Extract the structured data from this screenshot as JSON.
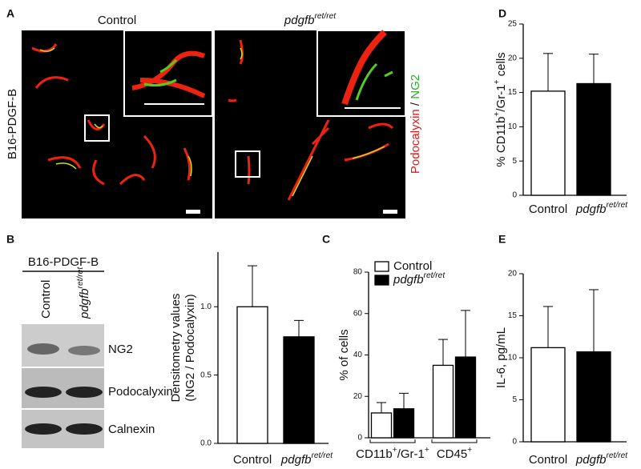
{
  "panel_letters": [
    "A",
    "B",
    "C",
    "D",
    "E"
  ],
  "panel_a": {
    "columns": [
      [
        "Control"
      ],
      [
        "pdgfb",
        "ret/ret"
      ]
    ],
    "row_label": "B16-PDGF-B",
    "stain": [
      "Podocalyxin",
      " / ",
      "NG2"
    ]
  },
  "panel_b_blot": {
    "header": "B16-PDGF-B",
    "lanes": [
      [
        "Control"
      ],
      [
        "pdgfb",
        "ret/ret"
      ]
    ],
    "bands": [
      "NG2",
      "Podocalyxin",
      "Calnexin"
    ]
  },
  "chart_data": [
    {
      "type": "bar",
      "ylabel": [
        "Densitometry values",
        "(NG2 / Podocalyxin)"
      ],
      "categories": [
        [
          "Control"
        ],
        [
          "pdgfb",
          "ret/ret"
        ]
      ],
      "values": [
        1.0,
        0.78
      ],
      "errors": [
        0.3,
        0.12
      ],
      "colors": [
        "#ffffff",
        "#000000"
      ],
      "ylim": [
        0,
        1.4
      ],
      "yticks": [
        {
          "value": 0,
          "label": "0.0"
        },
        {
          "value": 0.5,
          "label": "0.5"
        },
        {
          "value": 1,
          "label": "1.0"
        }
      ]
    },
    {
      "type": "grouped_bar",
      "ylabel": [
        "%  of cells"
      ],
      "categories": [
        [
          "CD11b",
          "+",
          "/Gr-1",
          "+"
        ],
        [
          "CD45",
          "+"
        ]
      ],
      "series": [
        {
          "name": "Control",
          "color": "#ffffff",
          "values": [
            12,
            35
          ],
          "errors": [
            5,
            12.5
          ]
        },
        {
          "name": "pdgfb",
          "name_sup": "ret/ret",
          "color": "#000000",
          "values": [
            14,
            39
          ],
          "errors": [
            7.5,
            22.5
          ]
        }
      ],
      "ylim": [
        0,
        80
      ],
      "yticks": [
        0,
        20,
        40,
        60,
        80
      ]
    },
    {
      "type": "bar",
      "ylabel": [
        "%  CD11b",
        "+",
        "/Gr-1",
        "+",
        " cells"
      ],
      "categories": [
        [
          "Control"
        ],
        [
          "pdgfb",
          "ret/ret"
        ]
      ],
      "values": [
        15.2,
        16.3
      ],
      "errors": [
        5.5,
        4.3
      ],
      "colors": [
        "#ffffff",
        "#000000"
      ],
      "ylim": [
        0,
        25
      ],
      "yticks": [
        0,
        5,
        10,
        15,
        20,
        25
      ]
    },
    {
      "type": "bar",
      "ylabel": [
        "IL-6, pg/mL"
      ],
      "categories": [
        [
          "Control"
        ],
        [
          "pdgfb",
          "ret/ret"
        ]
      ],
      "values": [
        11.2,
        10.7
      ],
      "errors": [
        4.9,
        7.4
      ],
      "colors": [
        "#ffffff",
        "#000000"
      ],
      "ylim": [
        0,
        20
      ],
      "yticks": [
        0,
        5,
        10,
        15,
        20
      ]
    }
  ]
}
